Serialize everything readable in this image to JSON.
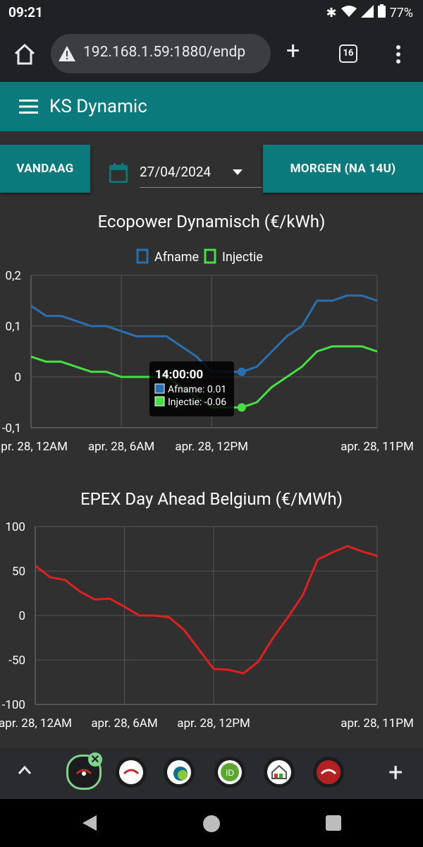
{
  "status": {
    "time": "09:21",
    "battery": "77%"
  },
  "browser": {
    "url": "192.168.1.59:1880/endp",
    "tab_count": "16"
  },
  "app": {
    "title": "KS Dynamic"
  },
  "controls": {
    "today_label": "VANDAAG",
    "tomorrow_label": "MORGEN (NA 14U)",
    "date_value": "27/04/2024"
  },
  "chart_data": [
    {
      "type": "line",
      "title": "Ecopower Dynamisch (€/kWh)",
      "x_tick_labels": [
        "apr. 28, 12AM",
        "apr. 28, 6AM",
        "apr. 28, 12PM",
        "apr. 28, 11PM"
      ],
      "x_hours": [
        0,
        1,
        2,
        3,
        4,
        5,
        6,
        7,
        8,
        9,
        10,
        11,
        12,
        13,
        14,
        15,
        16,
        17,
        18,
        19,
        20,
        21,
        22,
        23
      ],
      "series": [
        {
          "name": "Afname",
          "color": "#2a6fb0",
          "values": [
            0.14,
            0.12,
            0.12,
            0.11,
            0.1,
            0.1,
            0.09,
            0.08,
            0.08,
            0.08,
            0.06,
            0.04,
            0.01,
            0.01,
            0.01,
            0.02,
            0.05,
            0.08,
            0.1,
            0.15,
            0.15,
            0.16,
            0.16,
            0.15
          ]
        },
        {
          "name": "Injectie",
          "color": "#44e044",
          "values": [
            0.04,
            0.03,
            0.03,
            0.02,
            0.01,
            0.01,
            0.0,
            0.0,
            0.0,
            0.0,
            -0.02,
            -0.04,
            -0.06,
            -0.06,
            -0.06,
            -0.05,
            -0.02,
            0.0,
            0.02,
            0.05,
            0.06,
            0.06,
            0.06,
            0.05
          ]
        }
      ],
      "y_ticks": [
        "0,2",
        "0,1",
        "0",
        "-0,1"
      ],
      "ylim": [
        -0.1,
        0.2
      ],
      "legend": "top",
      "tooltip": {
        "title": "14:00:00",
        "lines": [
          "Afname: 0.01",
          "Injectie: -0.06"
        ],
        "hour": 14
      }
    },
    {
      "type": "line",
      "title": "EPEX Day Ahead Belgium (€/MWh)",
      "x_tick_labels": [
        "apr. 28, 12AM",
        "apr. 28, 6AM",
        "apr. 28, 12PM",
        "apr. 28, 11PM"
      ],
      "x_hours": [
        0,
        1,
        2,
        3,
        4,
        5,
        6,
        7,
        8,
        9,
        10,
        11,
        12,
        13,
        14,
        15,
        16,
        17,
        18,
        19,
        20,
        21,
        22,
        23
      ],
      "series": [
        {
          "name": "EPEX",
          "color": "#e02020",
          "values": [
            56,
            43,
            40,
            27,
            18,
            19,
            10,
            0,
            0,
            -2,
            -16,
            -38,
            -60,
            -61,
            -65,
            -52,
            -25,
            -2,
            23,
            63,
            71,
            78,
            72,
            67
          ]
        }
      ],
      "y_ticks": [
        "100",
        "50",
        "0",
        "-50",
        "-100"
      ],
      "ylim": [
        -100,
        100
      ]
    }
  ]
}
